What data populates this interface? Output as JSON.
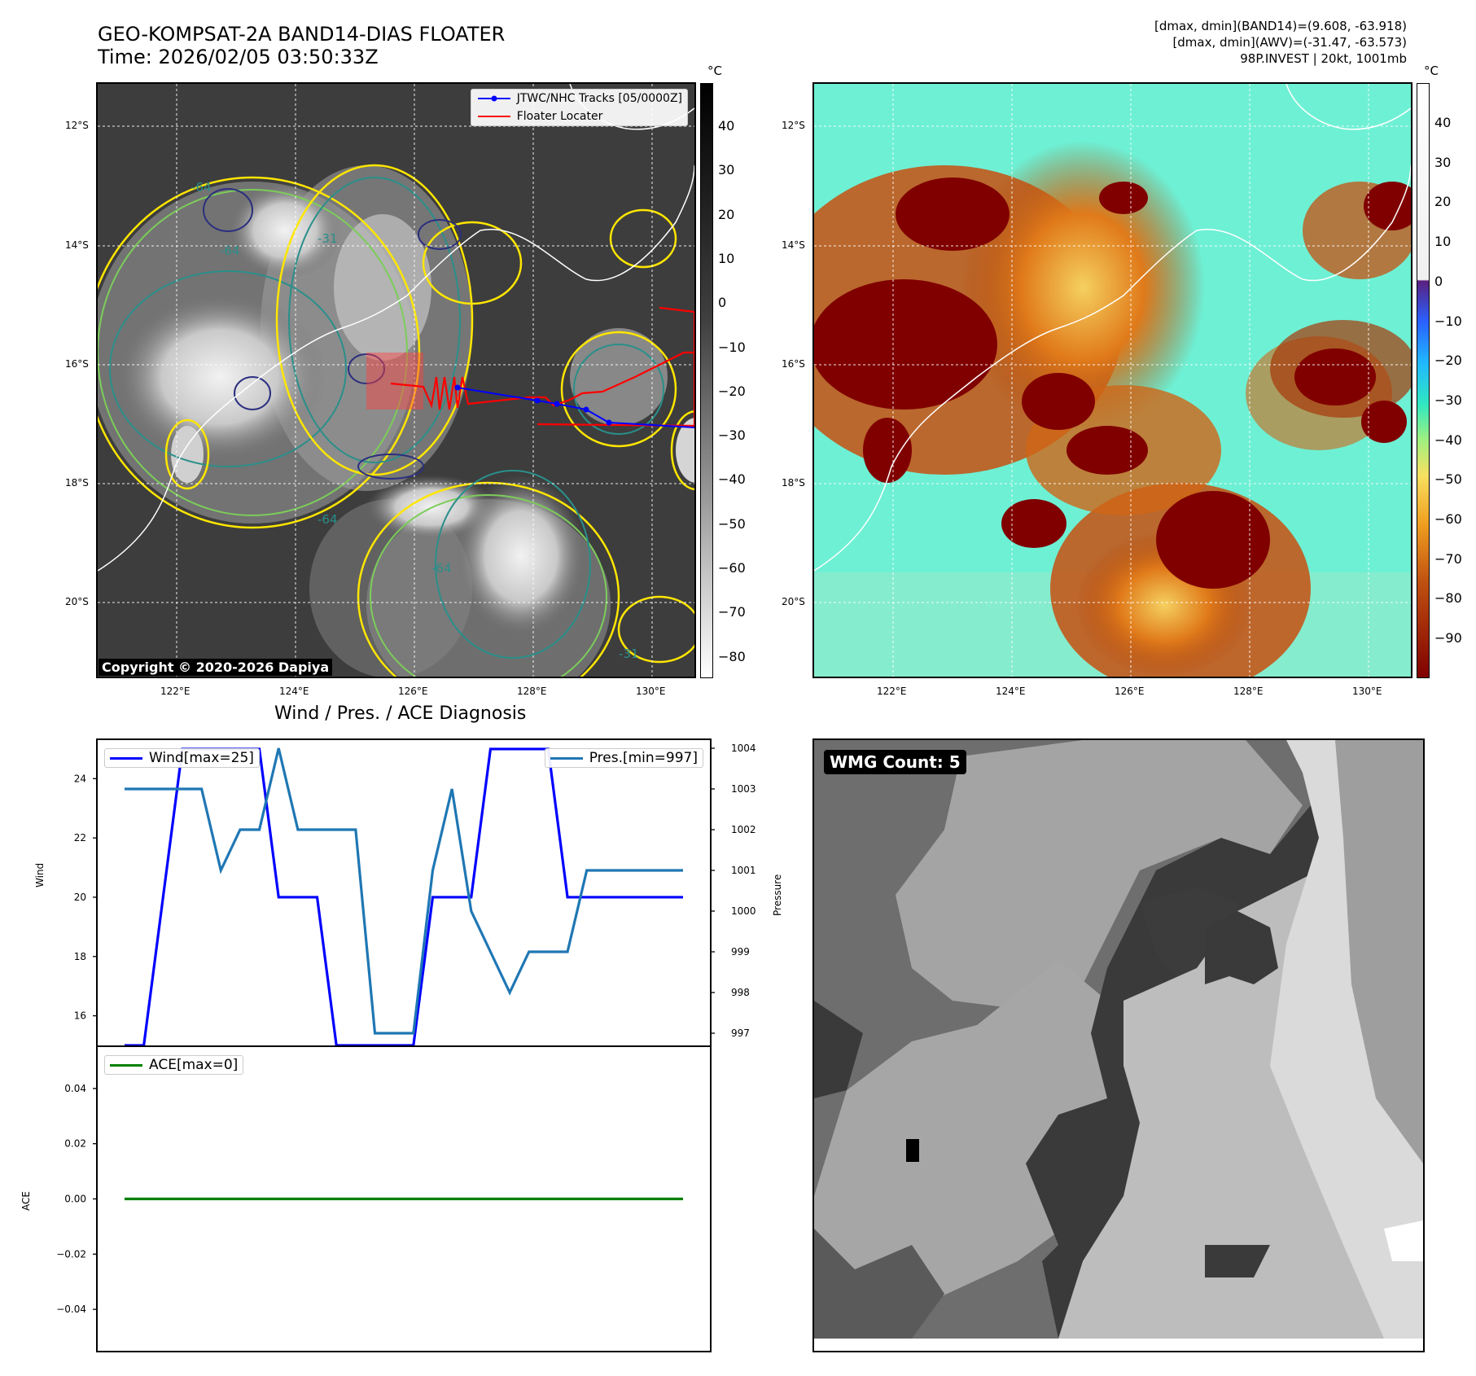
{
  "header": {
    "title": "GEO-KOMPSAT-2A BAND14-DIAS FLOATER",
    "time": "Time: 2026/02/05 03:50:33Z",
    "info_lines": [
      "[dmax, dmin](BAND14)=(9.608, -63.918)",
      "[dmax, dmin](AWV)=(-31.47, -63.573)",
      "98P.INVEST | 20kt, 1001mb"
    ]
  },
  "map_axes": {
    "lat_labels": [
      "12°S",
      "14°S",
      "16°S",
      "18°S",
      "20°S"
    ],
    "lon_labels": [
      "122°E",
      "124°E",
      "126°E",
      "128°E",
      "130°E"
    ]
  },
  "ir_panel": {
    "legend": [
      "JTWC/NHC Tracks [05/0000Z]",
      "Floater Locater"
    ],
    "contour_labels": [
      "-64",
      "-64",
      "-31",
      "-64",
      "-64",
      "-31"
    ],
    "copyright": "Copyright © 2020-2026 Dapiya",
    "colorbar_unit": "°C",
    "colorbar_ticks": [
      "40",
      "30",
      "20",
      "10",
      "0",
      "−10",
      "−20",
      "−30",
      "−40",
      "−50",
      "−60",
      "−70",
      "−80"
    ],
    "colors": {
      "track": "#0000ff",
      "locator": "#ff0000",
      "contour_yellow": "#ffe600",
      "contour_green": "#7ccd5a",
      "contour_teal": "#2a8f8a",
      "contour_navy": "#2b2f7e"
    }
  },
  "awv_panel": {
    "colorbar_unit": "°C",
    "colorbar_ticks": [
      "40",
      "30",
      "20",
      "10",
      "0",
      "−10",
      "−20",
      "−30",
      "−40",
      "−50",
      "−60",
      "−70",
      "−80",
      "−90"
    ]
  },
  "diagnosis": {
    "title": "Wind / Pres. / ACE Diagnosis",
    "wmg_label": "WMG Count: 5"
  },
  "chart_data": [
    {
      "type": "line",
      "x": [
        0,
        1,
        2,
        3,
        4,
        5,
        6,
        7,
        8,
        9,
        10,
        11,
        12,
        13,
        14,
        15,
        16,
        17,
        18,
        19,
        20,
        21,
        22,
        23,
        24,
        25,
        26,
        27,
        28,
        29
      ],
      "series": [
        {
          "name": "Wind[max=25]",
          "axis": "left",
          "color": "#0000ff",
          "values": [
            15,
            15,
            20,
            25,
            25,
            25,
            25,
            25,
            20,
            20,
            20,
            15,
            15,
            15,
            15,
            15,
            20,
            20,
            20,
            25,
            25,
            25,
            25,
            20,
            20,
            20,
            20,
            20,
            20,
            20
          ]
        },
        {
          "name": "Pres.[min=997]",
          "axis": "right",
          "color": "#1f77b4",
          "values": [
            1003,
            1003,
            1003,
            1003,
            1003,
            1001,
            1002,
            1002,
            1004,
            1002,
            1002,
            1002,
            1002,
            997,
            997,
            997,
            1001,
            1003,
            1000,
            999,
            998,
            999,
            999,
            999,
            1001,
            1001,
            1001,
            1001,
            1001,
            1001
          ]
        }
      ],
      "ylabel": "Wind",
      "y2label": "Pressure",
      "ylim": [
        15,
        25.3
      ],
      "y2lim": [
        996.7,
        1004.2
      ],
      "yticks": [
        16,
        18,
        20,
        22,
        24
      ],
      "y2ticks": [
        997,
        998,
        999,
        1000,
        1001,
        1002,
        1003,
        1004
      ]
    },
    {
      "type": "line",
      "x": [
        0,
        29
      ],
      "series": [
        {
          "name": "ACE[max=0]",
          "color": "#008000",
          "values": [
            0,
            0
          ]
        }
      ],
      "ylabel": "ACE",
      "ylim": [
        -0.055,
        0.055
      ],
      "yticks": [
        0.04,
        0.02,
        0.0,
        -0.02,
        -0.04
      ],
      "ytick_labels": [
        "0.04",
        "0.02",
        "0.00",
        "−0.02",
        "−0.04"
      ]
    }
  ]
}
